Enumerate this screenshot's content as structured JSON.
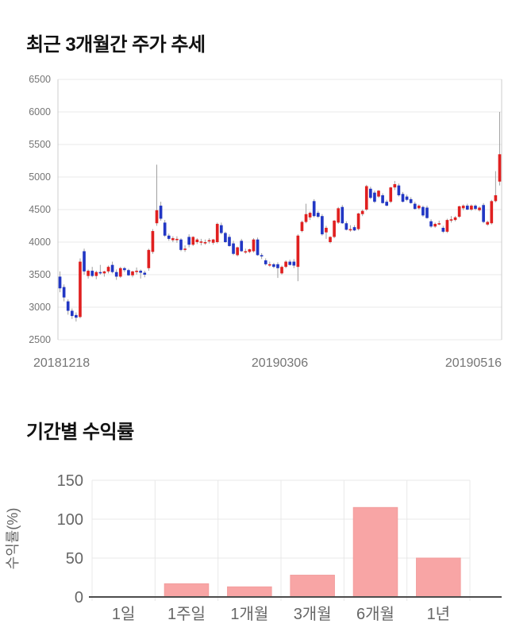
{
  "page": {
    "background": "#ffffff"
  },
  "price_section": {
    "title": "최근 3개월간 주가 추세"
  },
  "returns_section": {
    "title": "기간별 수익률"
  },
  "chart_data": [
    {
      "type": "candlestick",
      "title": "최근 3개월간 주가 추세",
      "ylim": [
        2500,
        6500
      ],
      "y_ticks": [
        6500,
        6000,
        5500,
        5000,
        4500,
        4000,
        3500,
        3000,
        2500
      ],
      "x_tick_labels": [
        "20181218",
        "20190306",
        "20190516"
      ],
      "grid": "horizontal",
      "legend": "none",
      "colors": {
        "up": "#e02020",
        "down": "#2237c4",
        "wick": "#a0a0a0",
        "grid": "#e8e8e8",
        "border": "#cccccc",
        "tick_text": "#757575"
      },
      "candles_format": [
        "open",
        "high",
        "low",
        "close"
      ],
      "candles": [
        [
          3470,
          3550,
          3230,
          3290
        ],
        [
          3310,
          3350,
          3090,
          3150
        ],
        [
          3090,
          3120,
          2885,
          2945
        ],
        [
          2945,
          2980,
          2820,
          2865
        ],
        [
          2880,
          2920,
          2780,
          2840
        ],
        [
          2850,
          3750,
          2830,
          3700
        ],
        [
          3860,
          3900,
          3500,
          3550
        ],
        [
          3480,
          3580,
          3440,
          3560
        ],
        [
          3560,
          3620,
          3460,
          3480
        ],
        [
          3480,
          3560,
          3430,
          3540
        ],
        [
          3540,
          3650,
          3500,
          3520
        ],
        [
          3520,
          3560,
          3470,
          3550
        ],
        [
          3550,
          3640,
          3520,
          3620
        ],
        [
          3650,
          3700,
          3520,
          3540
        ],
        [
          3540,
          3580,
          3420,
          3470
        ],
        [
          3470,
          3620,
          3450,
          3600
        ],
        [
          3600,
          3620,
          3540,
          3570
        ],
        [
          3570,
          3590,
          3480,
          3490
        ],
        [
          3490,
          3560,
          3460,
          3550
        ],
        [
          3550,
          3610,
          3500,
          3560
        ],
        [
          3560,
          3580,
          3440,
          3530
        ],
        [
          3530,
          3560,
          3460,
          3500
        ],
        [
          3600,
          3900,
          3560,
          3880
        ],
        [
          3850,
          4200,
          3820,
          4170
        ],
        [
          4290,
          5190,
          4250,
          4490
        ],
        [
          4560,
          4620,
          4330,
          4360
        ],
        [
          4300,
          4340,
          4080,
          4100
        ],
        [
          4100,
          4130,
          4020,
          4050
        ],
        [
          4030,
          4090,
          4000,
          4060
        ],
        [
          4050,
          4090,
          3990,
          4050
        ],
        [
          4040,
          4060,
          3860,
          3880
        ],
        [
          3900,
          3950,
          3850,
          3900
        ],
        [
          4080,
          4120,
          3920,
          3960
        ],
        [
          3960,
          4090,
          3940,
          4080
        ],
        [
          4000,
          4060,
          3970,
          4040
        ],
        [
          4010,
          4050,
          3950,
          4010
        ],
        [
          4000,
          4040,
          3960,
          4000
        ],
        [
          4030,
          4060,
          3980,
          4030
        ],
        [
          3990,
          4050,
          3960,
          4040
        ],
        [
          4000,
          4300,
          3980,
          4280
        ],
        [
          4260,
          4300,
          4120,
          4140
        ],
        [
          4140,
          4160,
          3990,
          4000
        ],
        [
          4080,
          4120,
          3930,
          3940
        ],
        [
          3980,
          4020,
          3800,
          3820
        ],
        [
          3800,
          3930,
          3780,
          3920
        ],
        [
          4020,
          4050,
          3850,
          3860
        ],
        [
          3860,
          3900,
          3820,
          3860
        ],
        [
          3850,
          3900,
          3830,
          3890
        ],
        [
          3860,
          4060,
          3840,
          4040
        ],
        [
          4040,
          4070,
          3790,
          3800
        ],
        [
          3800,
          3830,
          3740,
          3780
        ],
        [
          3720,
          3750,
          3640,
          3660
        ],
        [
          3660,
          3700,
          3620,
          3660
        ],
        [
          3660,
          3680,
          3600,
          3620
        ],
        [
          3660,
          3690,
          3450,
          3600
        ],
        [
          3520,
          3640,
          3500,
          3620
        ],
        [
          3620,
          3720,
          3600,
          3700
        ],
        [
          3700,
          3730,
          3640,
          3650
        ],
        [
          3700,
          3740,
          3600,
          3640
        ],
        [
          3620,
          4120,
          3400,
          4100
        ],
        [
          4170,
          4330,
          4150,
          4310
        ],
        [
          4310,
          4590,
          4290,
          4430
        ],
        [
          4380,
          4470,
          4340,
          4450
        ],
        [
          4630,
          4660,
          4380,
          4400
        ],
        [
          4450,
          4480,
          4370,
          4390
        ],
        [
          4400,
          4430,
          4100,
          4120
        ],
        [
          4150,
          4250,
          4050,
          4220
        ],
        [
          4000,
          4090,
          3980,
          4080
        ],
        [
          4080,
          4340,
          4060,
          4330
        ],
        [
          4300,
          4540,
          4280,
          4520
        ],
        [
          4540,
          4570,
          4280,
          4290
        ],
        [
          4290,
          4320,
          4180,
          4190
        ],
        [
          4200,
          4260,
          4160,
          4200
        ],
        [
          4230,
          4260,
          4170,
          4180
        ],
        [
          4200,
          4450,
          4180,
          4440
        ],
        [
          4430,
          4500,
          4400,
          4480
        ],
        [
          4500,
          4880,
          4480,
          4860
        ],
        [
          4820,
          4850,
          4660,
          4680
        ],
        [
          4760,
          4790,
          4600,
          4620
        ],
        [
          4700,
          4800,
          4680,
          4790
        ],
        [
          4720,
          4750,
          4590,
          4600
        ],
        [
          4620,
          4650,
          4550,
          4560
        ],
        [
          4620,
          4850,
          4600,
          4840
        ],
        [
          4840,
          4940,
          4800,
          4890
        ],
        [
          4870,
          4900,
          4700,
          4720
        ],
        [
          4740,
          4770,
          4610,
          4620
        ],
        [
          4700,
          4730,
          4630,
          4650
        ],
        [
          4660,
          4690,
          4590,
          4600
        ],
        [
          4590,
          4620,
          4500,
          4510
        ],
        [
          4520,
          4580,
          4500,
          4560
        ],
        [
          4540,
          4560,
          4390,
          4410
        ],
        [
          4530,
          4560,
          4360,
          4370
        ],
        [
          4320,
          4350,
          4220,
          4240
        ],
        [
          4240,
          4300,
          4220,
          4280
        ],
        [
          4290,
          4330,
          4260,
          4290
        ],
        [
          4220,
          4250,
          4140,
          4160
        ],
        [
          4160,
          4360,
          4140,
          4340
        ],
        [
          4350,
          4400,
          4300,
          4350
        ],
        [
          4340,
          4400,
          4320,
          4380
        ],
        [
          4390,
          4560,
          4370,
          4550
        ],
        [
          4520,
          4580,
          4490,
          4560
        ],
        [
          4560,
          4590,
          4490,
          4500
        ],
        [
          4500,
          4580,
          4480,
          4560
        ],
        [
          4560,
          4580,
          4490,
          4510
        ],
        [
          4490,
          4550,
          4470,
          4530
        ],
        [
          4570,
          4600,
          4290,
          4310
        ],
        [
          4270,
          4330,
          4250,
          4310
        ],
        [
          4290,
          4650,
          4270,
          4630
        ],
        [
          4630,
          5090,
          4610,
          4720
        ],
        [
          4930,
          6000,
          4870,
          5350
        ]
      ]
    },
    {
      "type": "bar",
      "title": "기간별 수익률",
      "categories": [
        "1일",
        "1주일",
        "1개월",
        "3개월",
        "6개월",
        "1년"
      ],
      "values": [
        0,
        17,
        13,
        28,
        115,
        50
      ],
      "xlabel": "",
      "ylabel": "수익률(%)",
      "ylim": [
        0,
        150
      ],
      "y_ticks": [
        150,
        100,
        50,
        0
      ],
      "grid": "on",
      "legend": "none",
      "colors": {
        "bar_fill": "#f8a5a5",
        "bar_stroke": "#f29d9d",
        "grid": "#e8e8e8",
        "axis": "#4d4d4d",
        "tick_text": "#666666"
      }
    }
  ]
}
